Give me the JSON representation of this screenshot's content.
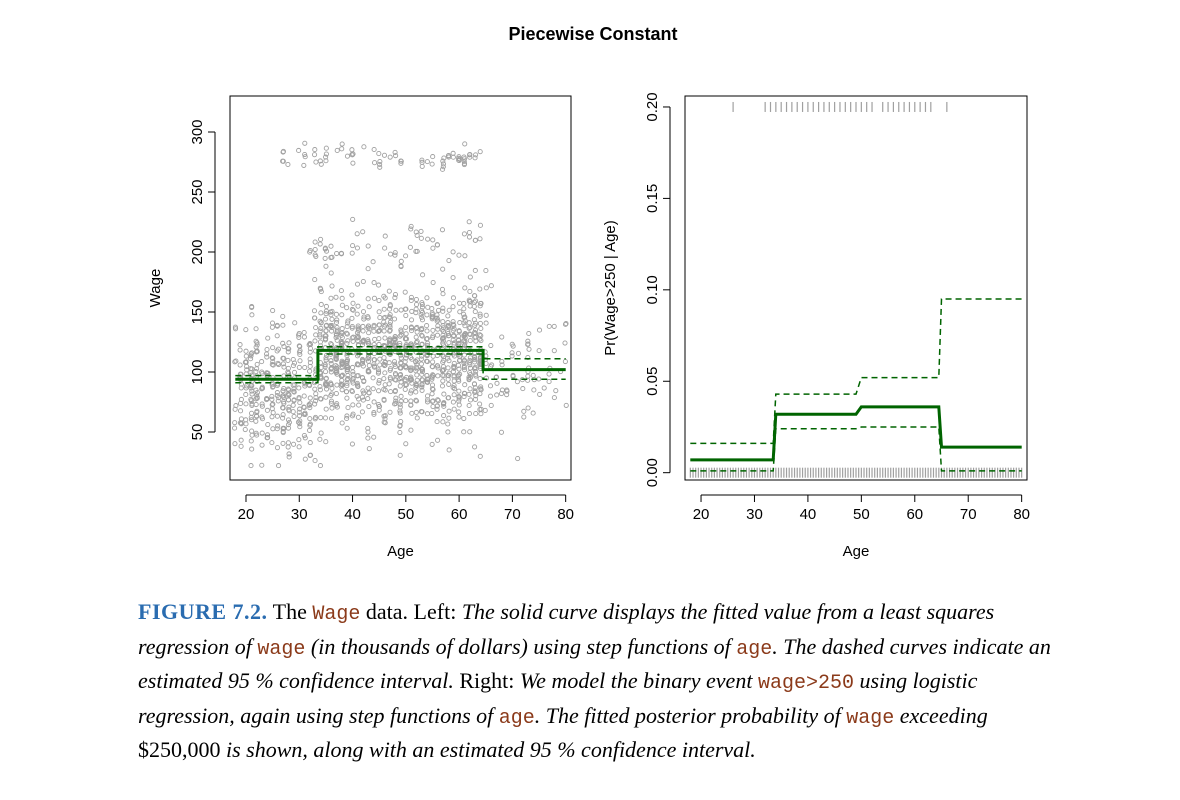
{
  "figure_title": "Piecewise Constant",
  "colors": {
    "fit": "#006400",
    "points": "#a0a0a0",
    "rug": "#a0a0a0",
    "label": "#2a6cb0",
    "code": "#8b3a1a"
  },
  "chart_data": [
    {
      "type": "scatter",
      "title": "",
      "xlabel": "Age",
      "ylabel": "Wage",
      "xlim": [
        17,
        81
      ],
      "ylim": [
        10,
        330
      ],
      "xticks": [
        20,
        30,
        40,
        50,
        60,
        70,
        80
      ],
      "yticks": [
        50,
        100,
        150,
        200,
        250,
        300
      ],
      "xtick_labels": [
        "20",
        "30",
        "40",
        "50",
        "60",
        "70",
        "80"
      ],
      "ytick_labels": [
        "50",
        "100",
        "150",
        "200",
        "250",
        "300"
      ],
      "series": [
        {
          "name": "fit",
          "style": "solid",
          "x": [
            18,
            33.5,
            33.5,
            64.5,
            64.5,
            80
          ],
          "y": [
            94,
            94,
            118,
            118,
            102,
            102
          ]
        },
        {
          "name": "upper 95% CI",
          "style": "dashed",
          "x": [
            18,
            33.5,
            33.5,
            64.5,
            64.5,
            80
          ],
          "y": [
            97,
            97,
            121,
            121,
            111,
            111
          ]
        },
        {
          "name": "lower 95% CI",
          "style": "dashed",
          "x": [
            18,
            33.5,
            33.5,
            64.5,
            64.5,
            80
          ],
          "y": [
            91,
            91,
            115,
            115,
            94,
            94
          ]
        }
      ],
      "scatter_groups": [
        {
          "x_range": [
            18,
            33
          ],
          "mean": 85,
          "sd": 26,
          "count": 320
        },
        {
          "x_range": [
            33,
            65
          ],
          "mean": 113,
          "sd": 30,
          "count": 1000
        },
        {
          "x_range": [
            65,
            80
          ],
          "mean": 97,
          "sd": 22,
          "count": 70
        },
        {
          "x_range": [
            27,
            64
          ],
          "mean": 280,
          "sd": 6,
          "count": 75
        },
        {
          "x_range": [
            32,
            64
          ],
          "mean": 200,
          "sd": 10,
          "count": 60
        }
      ]
    },
    {
      "type": "line",
      "title": "",
      "xlabel": "Age",
      "ylabel": "Pr(Wage>250 | Age)",
      "xlim": [
        17,
        81
      ],
      "ylim": [
        -0.004,
        0.206
      ],
      "xticks": [
        20,
        30,
        40,
        50,
        60,
        70,
        80
      ],
      "yticks": [
        0.0,
        0.05,
        0.1,
        0.15,
        0.2
      ],
      "xtick_labels": [
        "20",
        "30",
        "40",
        "50",
        "60",
        "70",
        "80"
      ],
      "ytick_labels": [
        "0.00",
        "0.05",
        "0.10",
        "0.15",
        "0.20"
      ],
      "series": [
        {
          "name": "fit",
          "style": "solid",
          "x": [
            18,
            33.5,
            34,
            49,
            50,
            64.5,
            65,
            80
          ],
          "y": [
            0.007,
            0.007,
            0.032,
            0.032,
            0.036,
            0.036,
            0.014,
            0.014
          ]
        },
        {
          "name": "upper 95% CI",
          "style": "dashed",
          "x": [
            18,
            33.5,
            34,
            49,
            50,
            64.5,
            65,
            80
          ],
          "y": [
            0.016,
            0.016,
            0.043,
            0.043,
            0.052,
            0.052,
            0.095,
            0.095
          ]
        },
        {
          "name": "lower 95% CI",
          "style": "dashed",
          "x": [
            18,
            33.5,
            34,
            49,
            50,
            64.5,
            65,
            80
          ],
          "y": [
            0.001,
            0.001,
            0.024,
            0.024,
            0.025,
            0.025,
            0.001,
            0.001
          ]
        }
      ],
      "rug_top_ages": [
        26,
        32,
        33,
        34,
        35,
        36,
        37,
        38,
        39,
        40,
        41,
        42,
        43,
        44,
        45,
        46,
        47,
        48,
        49,
        50,
        51,
        52,
        54,
        55,
        56,
        57,
        58,
        59,
        60,
        61,
        62,
        63,
        66
      ],
      "rug_bottom_age_range": [
        18,
        80
      ]
    }
  ],
  "caption": {
    "label": "FIGURE 7.2.",
    "s1": " The ",
    "c1": "Wage",
    "s2": " data. ",
    "s3": "Left:",
    "s4": " The solid curve displays the fitted value from a least squares regression of ",
    "c2": "wage",
    "s5": " (in thousands of dollars) using step functions of ",
    "c3": "age",
    "s6": ". The dashed curves indicate an estimated 95 % confidence interval. ",
    "s7": "Right:",
    "s8": " We model the binary event ",
    "c4": "wage>250",
    "s9": " using logistic regression, again using step functions of ",
    "c5": "age",
    "s10": ". The fitted posterior probability of ",
    "c6": "wage",
    "s11": " exceeding ",
    "s12": "$250,000",
    "s13": " is shown, along with an estimated 95 % confidence interval."
  }
}
